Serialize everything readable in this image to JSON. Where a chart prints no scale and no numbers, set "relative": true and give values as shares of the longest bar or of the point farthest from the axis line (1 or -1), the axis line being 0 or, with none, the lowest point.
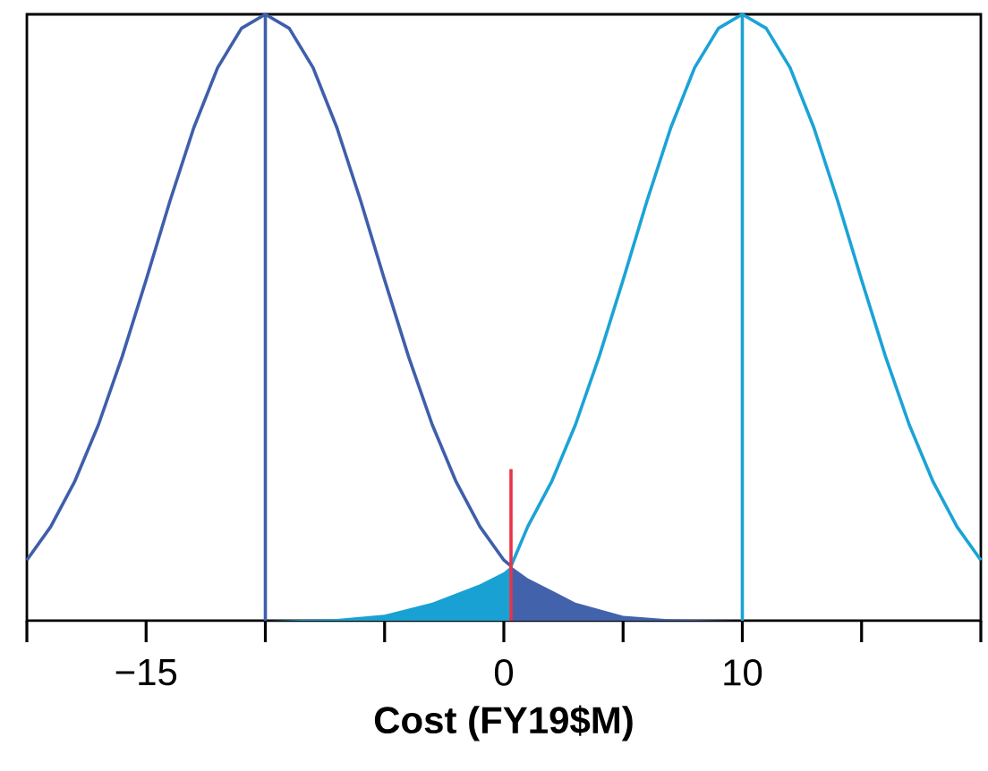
{
  "chart_data": {
    "type": "line",
    "relative": true,
    "xlabel": "Cost (FY19$M)",
    "xlim": [
      -20,
      20
    ],
    "xticks": [
      {
        "value": -20,
        "label": null
      },
      {
        "value": -15,
        "label": "−15"
      },
      {
        "value": -10,
        "label": null
      },
      {
        "value": -5,
        "label": null
      },
      0,
      {
        "value": 5,
        "label": null
      },
      10,
      {
        "value": 15,
        "label": null
      },
      {
        "value": 20,
        "label": null
      }
    ],
    "series": [
      {
        "type": "area",
        "color": "#1aa1d4",
        "x": [
          -10,
          -7,
          -5,
          -3,
          -2,
          -1,
          0,
          0.3
        ],
        "values": [
          0,
          0.003,
          0.01,
          0.03,
          0.045,
          0.06,
          0.08,
          0.09
        ]
      },
      {
        "type": "area",
        "color": "#4262ac",
        "x": [
          0.3,
          1,
          2,
          3,
          5,
          7,
          10
        ],
        "values": [
          0.09,
          0.07,
          0.05,
          0.03,
          0.008,
          0.002,
          0
        ]
      },
      {
        "color": "#3f5eab",
        "x": [
          -20,
          -19,
          -18,
          -17,
          -16,
          -15,
          -14,
          -13,
          -12,
          -11,
          -10,
          -9,
          -8,
          -7,
          -6,
          -5,
          -4,
          -3,
          -2,
          -1,
          0,
          0.3
        ],
        "values": [
          0.1,
          0.155,
          0.229,
          0.323,
          0.436,
          0.562,
          0.692,
          0.813,
          0.912,
          0.977,
          1,
          0.977,
          0.912,
          0.813,
          0.692,
          0.562,
          0.436,
          0.323,
          0.229,
          0.155,
          0.1,
          0.09
        ]
      },
      {
        "color": "#1ba3d6",
        "x": [
          0.3,
          1,
          2,
          3,
          4,
          5,
          6,
          7,
          8,
          9,
          10,
          11,
          12,
          13,
          14,
          15,
          16,
          17,
          18,
          19,
          20
        ],
        "values": [
          0.09,
          0.155,
          0.229,
          0.323,
          0.436,
          0.562,
          0.692,
          0.813,
          0.912,
          0.977,
          1,
          0.977,
          0.912,
          0.813,
          0.692,
          0.562,
          0.436,
          0.323,
          0.229,
          0.155,
          0.1
        ]
      },
      {
        "color": "#e8334a",
        "x": [
          0.3,
          0.3
        ],
        "values": [
          0,
          0.25
        ]
      }
    ],
    "ref_lines": [
      {
        "axis": "x",
        "value": -10,
        "color": "#3f5eab"
      },
      {
        "axis": "x",
        "value": 10,
        "color": "#1ba3d6"
      }
    ]
  }
}
